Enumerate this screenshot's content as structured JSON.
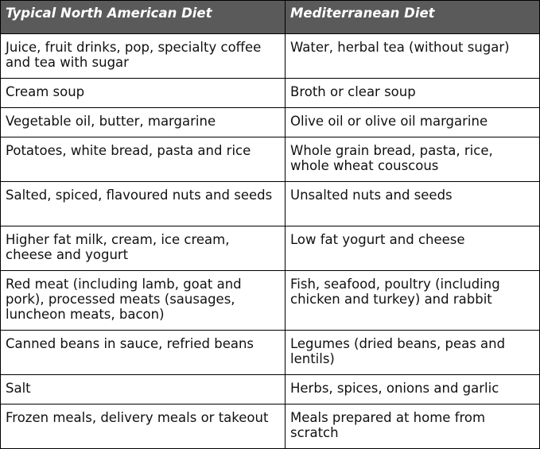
{
  "table": {
    "headers": [
      "Typical North American Diet",
      "Mediterranean Diet"
    ],
    "rows": [
      [
        "Juice, fruit drinks, pop, specialty coffee and tea with sugar",
        "Water, herbal tea (without sugar)"
      ],
      [
        "Cream soup",
        "Broth or clear soup"
      ],
      [
        "Vegetable oil, butter, margarine",
        "Olive oil or olive oil margarine"
      ],
      [
        "Potatoes, white bread, pasta and rice",
        "Whole grain bread, pasta, rice, whole wheat couscous"
      ],
      [
        "Salted, spiced, flavoured nuts and seeds",
        "Unsalted nuts and seeds"
      ],
      [
        "Higher fat milk, cream, ice cream, cheese and yogurt",
        "Low fat yogurt and cheese"
      ],
      [
        "Red meat (including lamb, goat and pork), processed meats (sausages, luncheon meats, bacon)",
        "Fish, seafood, poultry (including chicken and turkey) and rabbit"
      ],
      [
        "Canned beans in sauce, refried beans",
        "Legumes (dried beans, peas and lentils)"
      ],
      [
        "Salt",
        "Herbs, spices, onions and garlic"
      ],
      [
        "Frozen meals, delivery meals or takeout",
        "Meals prepared at home from scratch"
      ]
    ]
  }
}
